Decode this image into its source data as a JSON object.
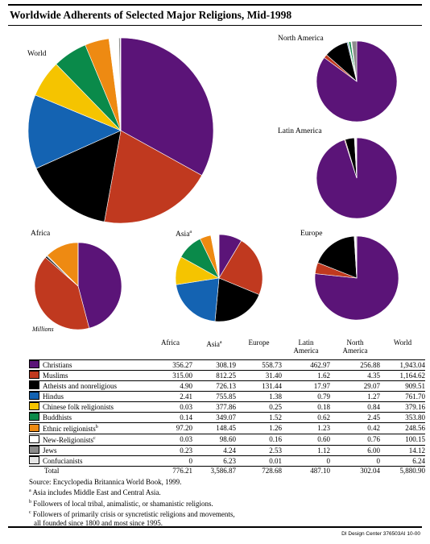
{
  "title": "Worldwide Adherents of Selected Major Religions, Mid-1998",
  "credit": "DI Design Center 376503AI 10-00",
  "units_label": "Millions",
  "chart_data": {
    "type": "pie",
    "title": "Worldwide Adherents of Selected Major Religions, Mid-1998",
    "units": "Millions",
    "religions": [
      "Christians",
      "Muslims",
      "Atheists and nonreligious",
      "Hindus",
      "Chinese folk religionists",
      "Buddhists",
      "Ethnic religionists",
      "New-Religionists",
      "Jews",
      "Confucianists"
    ],
    "colors": [
      "#5b1478",
      "#c0391f",
      "#000000",
      "#1463b2",
      "#f5c400",
      "#0a8a4a",
      "#ee8a12",
      "#ffffff",
      "#8c8c8c",
      "#e6e6e6"
    ],
    "regions": [
      "World",
      "North America",
      "Latin America",
      "Africa",
      "Asia",
      "Europe"
    ],
    "region_footnotes": {
      "Asia": "a"
    },
    "series": [
      {
        "name": "Africa",
        "values": [
          356.27,
          315.0,
          4.9,
          2.41,
          0.03,
          0.14,
          97.2,
          0.03,
          0.23,
          0
        ]
      },
      {
        "name": "Asia",
        "values": [
          308.19,
          812.25,
          726.13,
          755.85,
          377.86,
          349.07,
          148.45,
          98.6,
          4.24,
          6.23
        ]
      },
      {
        "name": "Europe",
        "values": [
          558.73,
          31.4,
          131.44,
          1.38,
          0.25,
          1.52,
          1.26,
          0.16,
          2.53,
          0.01
        ]
      },
      {
        "name": "Latin America",
        "values": [
          462.97,
          1.62,
          17.97,
          0.79,
          0.18,
          0.62,
          1.23,
          0.6,
          1.12,
          0
        ]
      },
      {
        "name": "North America",
        "values": [
          256.88,
          4.35,
          29.07,
          1.27,
          0.84,
          2.45,
          0.42,
          0.76,
          6.0,
          0
        ]
      },
      {
        "name": "World",
        "values": [
          1943.04,
          1164.62,
          909.51,
          761.7,
          379.16,
          353.8,
          248.56,
          100.15,
          14.12,
          6.24
        ]
      }
    ],
    "totals": [
      776.21,
      3586.87,
      728.68,
      487.1,
      302.04,
      5880.9
    ]
  },
  "table": {
    "headers": [
      "Africa",
      "Asia",
      "Europe",
      "Latin America",
      "North America",
      "World"
    ],
    "header_footnote": {
      "1": "a"
    },
    "rows": [
      {
        "label": "Christians",
        "cells": [
          "356.27",
          "308.19",
          "558.73",
          "462.97",
          "256.88",
          "1,943.04"
        ]
      },
      {
        "label": "Muslims",
        "cells": [
          "315.00",
          "812.25",
          "31.40",
          "1.62",
          "4.35",
          "1,164.62"
        ]
      },
      {
        "label": "Atheists and nonreligious",
        "cells": [
          "4.90",
          "726.13",
          "131.44",
          "17.97",
          "29.07",
          "909.51"
        ]
      },
      {
        "label": "Hindus",
        "cells": [
          "2.41",
          "755.85",
          "1.38",
          "0.79",
          "1.27",
          "761.70"
        ]
      },
      {
        "label": "Chinese folk religionists",
        "cells": [
          "0.03",
          "377.86",
          "0.25",
          "0.18",
          "0.84",
          "379.16"
        ]
      },
      {
        "label": "Buddhists",
        "cells": [
          "0.14",
          "349.07",
          "1.52",
          "0.62",
          "2.45",
          "353.80"
        ]
      },
      {
        "label": "Ethnic religionists",
        "sup": "b",
        "cells": [
          "97.20",
          "148.45",
          "1.26",
          "1.23",
          "0.42",
          "248.56"
        ]
      },
      {
        "label": "New-Religionists",
        "sup": "c",
        "cells": [
          "0.03",
          "98.60",
          "0.16",
          "0.60",
          "0.76",
          "100.15"
        ]
      },
      {
        "label": "Jews",
        "cells": [
          "0.23",
          "4.24",
          "2.53",
          "1.12",
          "6.00",
          "14.12"
        ]
      },
      {
        "label": "Confucianists",
        "cells": [
          "0",
          "6.23",
          "0.01",
          "0",
          "0",
          "6.24"
        ]
      }
    ],
    "total": {
      "label": "Total",
      "cells": [
        "776.21",
        "3,586.87",
        "728.68",
        "487.10",
        "302.04",
        "5,880.90"
      ]
    }
  },
  "notes": {
    "source": "Source: Encyclopedia Britannica World Book, 1999.",
    "a": "Asia includes Middle East and Central Asia.",
    "b": "Followers of local tribal, animalistic, or shamanistic religions.",
    "c1": "Followers of primarily crisis or syncretistic religions and movements,",
    "c2": "all founded since 1800 and most since 1995."
  }
}
